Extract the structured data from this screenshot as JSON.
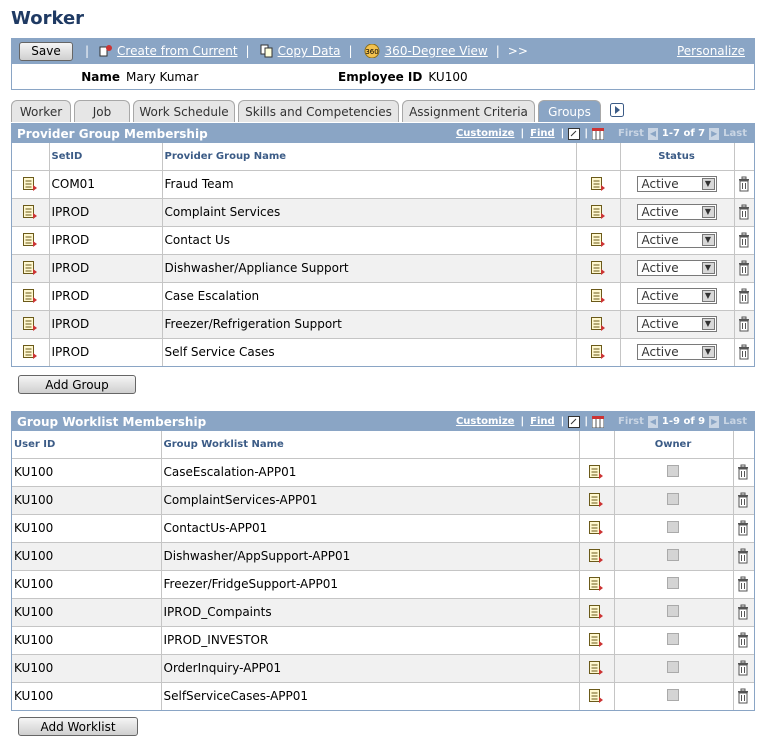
{
  "page": {
    "title": "Worker"
  },
  "toolbar": {
    "save_label": "Save",
    "create_from_current": "Create from Current",
    "copy_data": "Copy Data",
    "degree_view": "360-Degree View",
    "more": ">>",
    "personalize": "Personalize"
  },
  "header": {
    "name_label": "Name",
    "name_value": "Mary Kumar",
    "emp_label": "Employee ID",
    "emp_value": "KU100"
  },
  "tabs": [
    {
      "label": "Worker"
    },
    {
      "label": "Job"
    },
    {
      "label": "Work Schedule"
    },
    {
      "label": "Skills and Competencies"
    },
    {
      "label": "Assignment Criteria"
    },
    {
      "label": "Groups"
    }
  ],
  "provider": {
    "title": "Provider Group Membership",
    "customize": "Customize",
    "find": "Find",
    "first": "First",
    "count": "1-7 of 7",
    "last": "Last",
    "col_setid": "SetID",
    "col_name": "Provider Group Name",
    "col_status": "Status",
    "rows": [
      {
        "setid": "COM01",
        "name": "Fraud Team",
        "status": "Active"
      },
      {
        "setid": "IPROD",
        "name": "Complaint Services",
        "status": "Active"
      },
      {
        "setid": "IPROD",
        "name": "Contact Us",
        "status": "Active"
      },
      {
        "setid": "IPROD",
        "name": "Dishwasher/Appliance Support",
        "status": "Active"
      },
      {
        "setid": "IPROD",
        "name": "Case Escalation",
        "status": "Active"
      },
      {
        "setid": "IPROD",
        "name": "Freezer/Refrigeration Support",
        "status": "Active"
      },
      {
        "setid": "IPROD",
        "name": "Self Service Cases",
        "status": "Active"
      }
    ],
    "add_label": "Add Group"
  },
  "worklist": {
    "title": "Group Worklist Membership",
    "customize": "Customize",
    "find": "Find",
    "first": "First",
    "count": "1-9 of 9",
    "last": "Last",
    "col_user": "User ID",
    "col_name": "Group Worklist Name",
    "col_owner": "Owner",
    "rows": [
      {
        "user": "KU100",
        "name": "CaseEscalation-APP01"
      },
      {
        "user": "KU100",
        "name": "ComplaintServices-APP01"
      },
      {
        "user": "KU100",
        "name": "ContactUs-APP01"
      },
      {
        "user": "KU100",
        "name": "Dishwasher/AppSupport-APP01"
      },
      {
        "user": "KU100",
        "name": "Freezer/FridgeSupport-APP01"
      },
      {
        "user": "KU100",
        "name": "IPROD_Compaints"
      },
      {
        "user": "KU100",
        "name": "IPROD_INVESTOR"
      },
      {
        "user": "KU100",
        "name": "OrderInquiry-APP01"
      },
      {
        "user": "KU100",
        "name": "SelfServiceCases-APP01"
      }
    ],
    "add_label": "Add Worklist"
  }
}
